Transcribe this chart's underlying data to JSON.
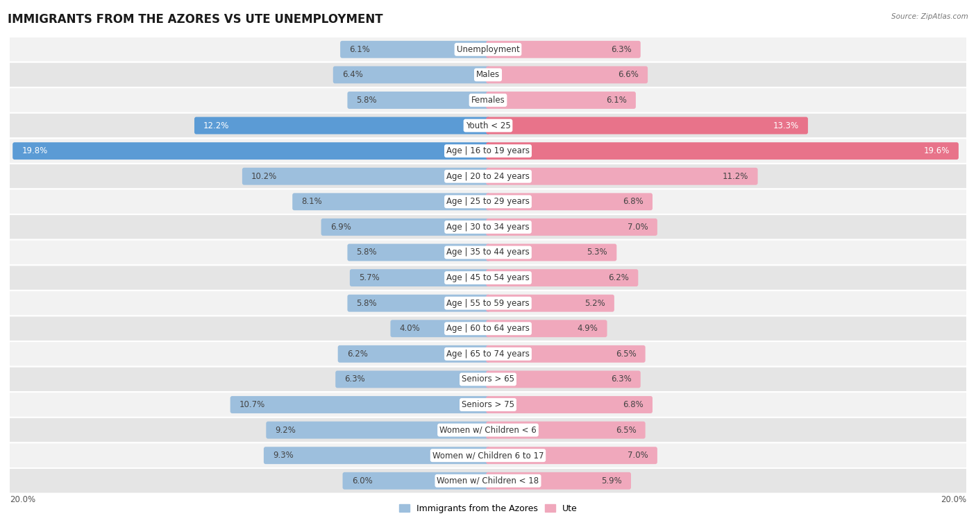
{
  "title": "IMMIGRANTS FROM THE AZORES VS UTE UNEMPLOYMENT",
  "source": "Source: ZipAtlas.com",
  "categories": [
    "Unemployment",
    "Males",
    "Females",
    "Youth < 25",
    "Age | 16 to 19 years",
    "Age | 20 to 24 years",
    "Age | 25 to 29 years",
    "Age | 30 to 34 years",
    "Age | 35 to 44 years",
    "Age | 45 to 54 years",
    "Age | 55 to 59 years",
    "Age | 60 to 64 years",
    "Age | 65 to 74 years",
    "Seniors > 65",
    "Seniors > 75",
    "Women w/ Children < 6",
    "Women w/ Children 6 to 17",
    "Women w/ Children < 18"
  ],
  "left_values": [
    6.1,
    6.4,
    5.8,
    12.2,
    19.8,
    10.2,
    8.1,
    6.9,
    5.8,
    5.7,
    5.8,
    4.0,
    6.2,
    6.3,
    10.7,
    9.2,
    9.3,
    6.0
  ],
  "right_values": [
    6.3,
    6.6,
    6.1,
    13.3,
    19.6,
    11.2,
    6.8,
    7.0,
    5.3,
    6.2,
    5.2,
    4.9,
    6.5,
    6.3,
    6.8,
    6.5,
    7.0,
    5.9
  ],
  "left_color_normal": "#9dbfdd",
  "right_color_normal": "#f0a8bc",
  "left_color_highlight": "#5b9bd5",
  "right_color_highlight": "#e8738a",
  "highlight_rows": [
    3,
    4
  ],
  "bar_height": 0.52,
  "xlim": 20.0,
  "left_axis_label": "20.0%",
  "right_axis_label": "20.0%",
  "legend_left": "Immigrants from the Azores",
  "legend_right": "Ute",
  "row_bg_light": "#f2f2f2",
  "row_bg_dark": "#e5e5e5",
  "label_fontsize": 8.5,
  "value_fontsize": 8.5,
  "title_fontsize": 12
}
